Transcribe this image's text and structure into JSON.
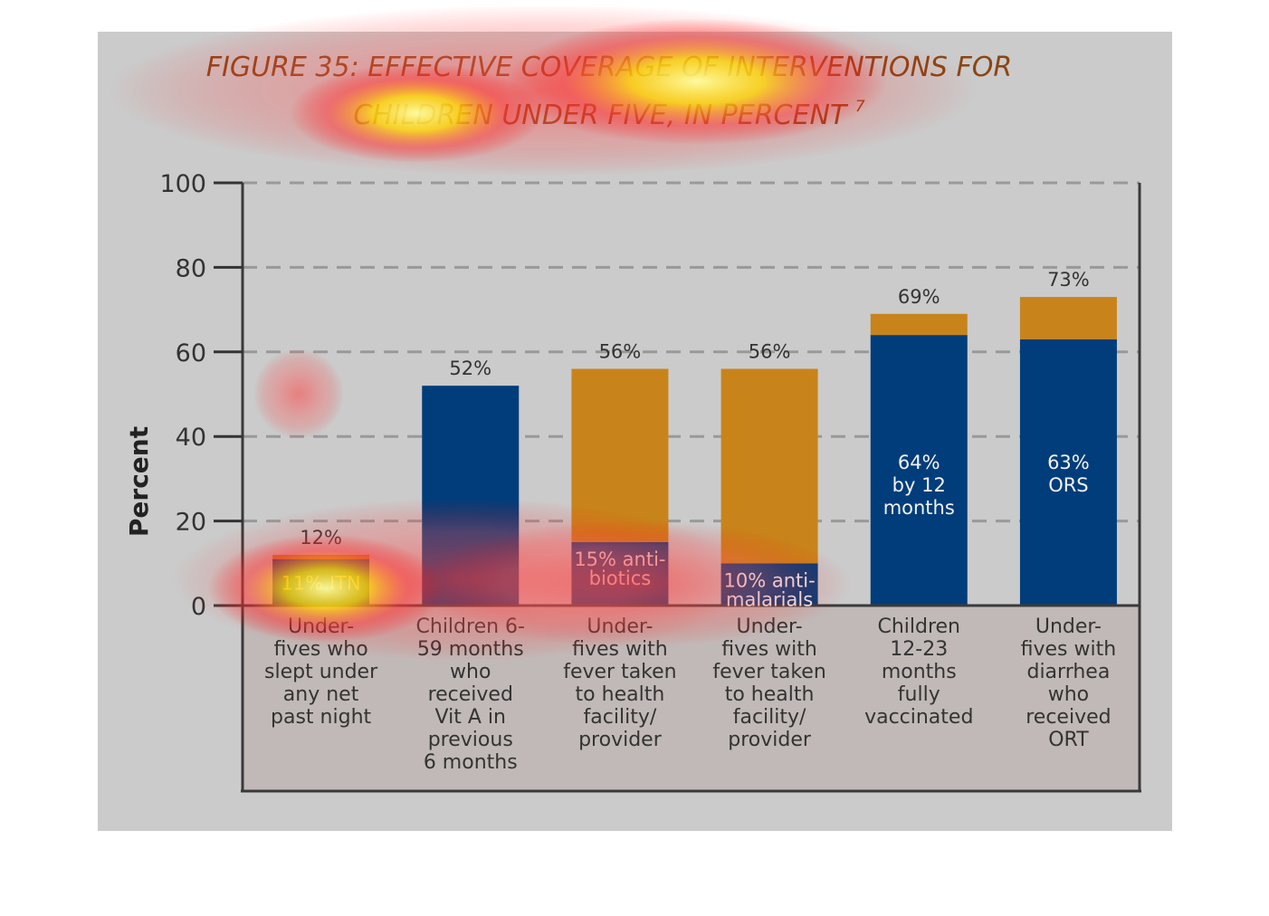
{
  "chart_data": {
    "type": "bar",
    "stacked": true,
    "title": "FIGURE 35: EFFECTIVE COVERAGE OF INTERVENTIONS FOR CHILDREN UNDER FIVE, IN PERCENT",
    "title_lines": [
      "FIGURE 35: EFFECTIVE COVERAGE OF INTERVENTIONS FOR",
      "CHILDREN UNDER FIVE, IN PERCENT"
    ],
    "title_superscript": "7",
    "xlabel": "",
    "ylabel": "Percent",
    "ylim": [
      0,
      100
    ],
    "yticks": [
      0,
      20,
      40,
      60,
      80,
      100
    ],
    "grid": "dashed horizontal",
    "categories": [
      [
        "Under-",
        "fives who",
        "slept under",
        "any net",
        "past night"
      ],
      [
        "Children 6-",
        "59 months",
        "who",
        "received",
        "Vit A in",
        "previous",
        "6 months"
      ],
      [
        "Under-",
        "fives with",
        "fever taken",
        "to health",
        "facility/",
        "provider"
      ],
      [
        "Under-",
        "fives with",
        "fever taken",
        "to health",
        "facility/",
        "provider"
      ],
      [
        "Children",
        "12-23",
        "months",
        "fully",
        "vaccinated"
      ],
      [
        "Under-",
        "fives with",
        "diarrhea",
        "who",
        "received",
        "ORT"
      ]
    ],
    "series": [
      {
        "values": [
          11,
          52,
          15,
          10,
          64,
          63
        ]
      },
      {
        "values": [
          1,
          0,
          41,
          46,
          5,
          10
        ]
      }
    ],
    "totals": [
      12,
      52,
      56,
      56,
      69,
      73
    ],
    "total_labels": [
      "12%",
      "52%",
      "56%",
      "56%",
      "69%",
      "73%"
    ],
    "inner_labels": [
      [
        "11% ITN"
      ],
      [],
      [
        "15% anti-",
        "biotics"
      ],
      [
        "10% anti-",
        "malarials"
      ],
      [
        "64%",
        "by 12",
        "months"
      ],
      [
        "63%",
        "ORS"
      ]
    ]
  },
  "colors": {
    "primary_series": "#003d7a",
    "secondary_series": "#c8841b",
    "title": "#8b4513",
    "plot_background": "#c7c7c7",
    "axis": "#333333",
    "grid": "#999999"
  }
}
